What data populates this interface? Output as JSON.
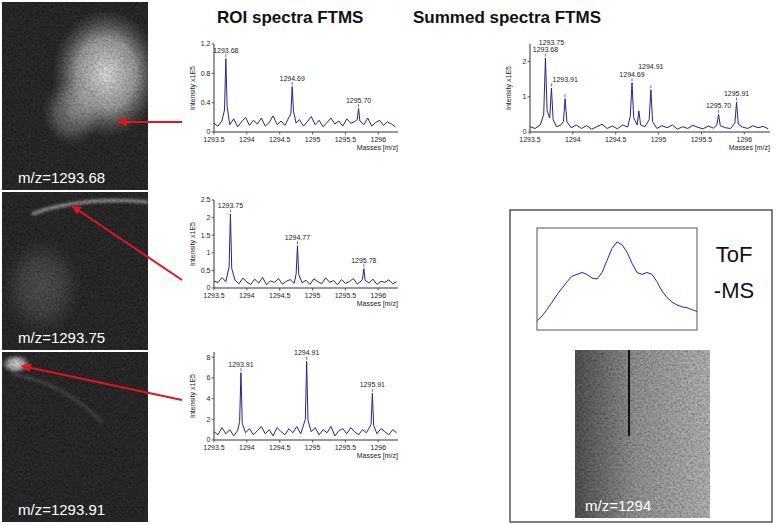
{
  "headings": {
    "roi": "ROI spectra FTMS",
    "summed": "Summed spectra FTMS"
  },
  "images": [
    {
      "label": "m/z=1293.68"
    },
    {
      "label": "m/z=1293.75"
    },
    {
      "label": "m/z=1293.91"
    },
    {
      "label": "m/z=1294"
    }
  ],
  "chart_data": [
    {
      "type": "line",
      "xlabel": "Masses [m/z]",
      "ylabel": "Intensity x1E5",
      "x": [
        1293.5,
        1293.56,
        1293.62,
        1293.66,
        1293.68,
        1293.7,
        1293.74,
        1293.8,
        1293.86,
        1293.92,
        1293.98,
        1294.04,
        1294.1,
        1294.16,
        1294.22,
        1294.28,
        1294.34,
        1294.4,
        1294.46,
        1294.52,
        1294.58,
        1294.64,
        1294.67,
        1294.69,
        1294.71,
        1294.75,
        1294.8,
        1294.86,
        1294.92,
        1294.98,
        1295.04,
        1295.1,
        1295.16,
        1295.22,
        1295.28,
        1295.34,
        1295.4,
        1295.46,
        1295.52,
        1295.58,
        1295.64,
        1295.68,
        1295.7,
        1295.72,
        1295.78,
        1295.84,
        1295.9,
        1295.96,
        1296.02,
        1296.08,
        1296.14,
        1296.2,
        1296.26
      ],
      "series": [
        {
          "color": "#2b2185",
          "values": [
            0.12,
            0.08,
            0.15,
            0.3,
            1.0,
            0.35,
            0.1,
            0.18,
            0.07,
            0.14,
            0.2,
            0.09,
            0.16,
            0.11,
            0.19,
            0.08,
            0.13,
            0.22,
            0.1,
            0.15,
            0.09,
            0.2,
            0.25,
            0.62,
            0.28,
            0.12,
            0.17,
            0.08,
            0.14,
            0.21,
            0.1,
            0.16,
            0.07,
            0.13,
            0.19,
            0.11,
            0.15,
            0.08,
            0.18,
            0.12,
            0.14,
            0.17,
            0.32,
            0.15,
            0.1,
            0.19,
            0.08,
            0.13,
            0.16,
            0.09,
            0.14,
            0.11,
            0.07
          ]
        }
      ],
      "xlim": [
        1293.5,
        1296.3
      ],
      "ylim": [
        0,
        1.2
      ],
      "xticks": [
        1293.5,
        1294,
        1294.5,
        1295,
        1295.5,
        1296
      ],
      "yticks": [
        0,
        0.4,
        0.8,
        1.2
      ],
      "annotations": [
        {
          "value": 1293.68,
          "label": "1293.68"
        },
        {
          "value": 1294.69,
          "label": "1294.69"
        },
        {
          "value": 1295.7,
          "label": "1295.70"
        }
      ]
    },
    {
      "type": "line",
      "xlabel": "Masses [m/z]",
      "ylabel": "Intensity x1E5",
      "x": [
        1293.5,
        1293.56,
        1293.62,
        1293.68,
        1293.73,
        1293.75,
        1293.77,
        1293.82,
        1293.88,
        1293.94,
        1294.0,
        1294.06,
        1294.12,
        1294.18,
        1294.24,
        1294.3,
        1294.36,
        1294.42,
        1294.48,
        1294.54,
        1294.6,
        1294.66,
        1294.72,
        1294.75,
        1294.77,
        1294.79,
        1294.84,
        1294.9,
        1294.96,
        1295.02,
        1295.08,
        1295.14,
        1295.2,
        1295.26,
        1295.32,
        1295.38,
        1295.44,
        1295.5,
        1295.56,
        1295.62,
        1295.68,
        1295.74,
        1295.76,
        1295.78,
        1295.8,
        1295.86,
        1295.92,
        1295.98,
        1296.04,
        1296.1,
        1296.16,
        1296.22,
        1296.28
      ],
      "series": [
        {
          "color": "#2b2185",
          "values": [
            0.2,
            0.15,
            0.3,
            0.18,
            0.6,
            2.1,
            0.55,
            0.22,
            0.12,
            0.28,
            0.17,
            0.1,
            0.25,
            0.14,
            0.3,
            0.09,
            0.2,
            0.16,
            0.27,
            0.11,
            0.19,
            0.24,
            0.13,
            0.4,
            1.2,
            0.38,
            0.15,
            0.22,
            0.1,
            0.26,
            0.18,
            0.12,
            0.29,
            0.16,
            0.21,
            0.09,
            0.24,
            0.13,
            0.18,
            0.27,
            0.11,
            0.2,
            0.25,
            0.55,
            0.22,
            0.14,
            0.25,
            0.1,
            0.19,
            0.16,
            0.23,
            0.12,
            0.18
          ]
        }
      ],
      "xlim": [
        1293.5,
        1296.3
      ],
      "ylim": [
        0,
        2.5
      ],
      "xticks": [
        1293.5,
        1294,
        1294.5,
        1295,
        1295.5,
        1296
      ],
      "yticks": [
        0,
        0.5,
        1,
        1.5,
        2,
        2.5
      ],
      "annotations": [
        {
          "value": 1293.75,
          "label": "1293.75"
        },
        {
          "value": 1294.77,
          "label": "1294.77"
        },
        {
          "value": 1295.78,
          "label": "1295.78"
        }
      ]
    },
    {
      "type": "line",
      "xlabel": "Masses [m/z]",
      "ylabel": "Intensity x1E5",
      "x": [
        1293.5,
        1293.56,
        1293.62,
        1293.68,
        1293.74,
        1293.8,
        1293.86,
        1293.89,
        1293.91,
        1293.93,
        1293.98,
        1294.04,
        1294.1,
        1294.16,
        1294.22,
        1294.28,
        1294.34,
        1294.4,
        1294.46,
        1294.52,
        1294.58,
        1294.64,
        1294.7,
        1294.76,
        1294.82,
        1294.89,
        1294.91,
        1294.93,
        1294.98,
        1295.04,
        1295.1,
        1295.16,
        1295.22,
        1295.28,
        1295.34,
        1295.4,
        1295.46,
        1295.52,
        1295.58,
        1295.64,
        1295.7,
        1295.76,
        1295.82,
        1295.89,
        1295.91,
        1295.93,
        1295.98,
        1296.04,
        1296.1,
        1296.16,
        1296.22,
        1296.28
      ],
      "series": [
        {
          "color": "#2b2185",
          "values": [
            0.8,
            0.5,
            1.2,
            0.6,
            1.0,
            0.4,
            0.9,
            1.8,
            6.5,
            1.6,
            0.7,
            1.1,
            0.5,
            0.9,
            1.3,
            0.6,
            1.0,
            0.4,
            1.2,
            0.8,
            0.5,
            1.1,
            0.7,
            1.3,
            0.6,
            2.0,
            7.6,
            1.9,
            0.8,
            1.2,
            0.5,
            1.0,
            0.7,
            1.3,
            0.4,
            0.9,
            1.1,
            0.6,
            1.2,
            0.8,
            0.5,
            1.0,
            0.7,
            1.5,
            4.5,
            1.4,
            0.6,
            1.1,
            0.8,
            0.5,
            1.0,
            0.7
          ]
        }
      ],
      "xlim": [
        1293.5,
        1296.3
      ],
      "ylim": [
        0,
        8.5
      ],
      "xticks": [
        1293.5,
        1294,
        1294.5,
        1295,
        1295.5,
        1296
      ],
      "yticks": [
        0,
        2,
        4,
        6,
        8
      ],
      "annotations": [
        {
          "value": 1293.91,
          "label": "1293.91"
        },
        {
          "value": 1294.91,
          "label": "1294.91"
        },
        {
          "value": 1295.91,
          "label": "1295.91"
        }
      ]
    },
    {
      "type": "line",
      "xlabel": "Masses [m/z]",
      "ylabel": "Intensity x1E5",
      "x": [
        1293.5,
        1293.56,
        1293.62,
        1293.66,
        1293.68,
        1293.7,
        1293.73,
        1293.75,
        1293.77,
        1293.81,
        1293.86,
        1293.89,
        1293.91,
        1293.93,
        1293.98,
        1294.04,
        1294.1,
        1294.16,
        1294.22,
        1294.28,
        1294.34,
        1294.4,
        1294.46,
        1294.52,
        1294.58,
        1294.64,
        1294.67,
        1294.69,
        1294.71,
        1294.75,
        1294.77,
        1294.79,
        1294.84,
        1294.89,
        1294.91,
        1294.93,
        1294.98,
        1295.04,
        1295.1,
        1295.16,
        1295.22,
        1295.28,
        1295.34,
        1295.4,
        1295.46,
        1295.52,
        1295.58,
        1295.64,
        1295.68,
        1295.7,
        1295.72,
        1295.78,
        1295.84,
        1295.89,
        1295.91,
        1295.93,
        1295.98,
        1296.04,
        1296.1,
        1296.16,
        1296.22,
        1296.28
      ],
      "series": [
        {
          "color": "#2b2185",
          "values": [
            0.15,
            0.1,
            0.2,
            0.5,
            2.1,
            0.6,
            0.4,
            1.25,
            0.35,
            0.15,
            0.2,
            0.3,
            0.95,
            0.3,
            0.12,
            0.2,
            0.1,
            0.18,
            0.08,
            0.15,
            0.22,
            0.1,
            0.17,
            0.09,
            0.2,
            0.14,
            0.45,
            1.4,
            0.4,
            0.2,
            0.6,
            0.2,
            0.15,
            0.35,
            1.2,
            0.3,
            0.1,
            0.18,
            0.12,
            0.2,
            0.08,
            0.15,
            0.1,
            0.19,
            0.13,
            0.09,
            0.17,
            0.11,
            0.2,
            0.5,
            0.18,
            0.12,
            0.1,
            0.25,
            0.85,
            0.22,
            0.14,
            0.1,
            0.18,
            0.12,
            0.16,
            0.09
          ]
        }
      ],
      "xlim": [
        1293.5,
        1296.3
      ],
      "ylim": [
        0,
        2.5
      ],
      "xticks": [
        1293.5,
        1294,
        1294.5,
        1295,
        1295.5,
        1296
      ],
      "yticks": [
        0,
        1,
        2
      ],
      "annotations": [
        {
          "value": 1293.68,
          "label": "1293.68"
        },
        {
          "value": 1293.75,
          "label": "1293.75"
        },
        {
          "value": 1293.91,
          "label": "1293.91"
        },
        {
          "value": 1294.69,
          "label": "1294.69"
        },
        {
          "value": 1294.91,
          "label": "1294.91"
        },
        {
          "value": 1295.7,
          "label": "1295.70"
        },
        {
          "value": 1295.91,
          "label": "1295.91"
        }
      ]
    },
    {
      "type": "line",
      "title": "ToF-MS",
      "x": [
        1290,
        1290.25,
        1290.5,
        1290.75,
        1291,
        1291.25,
        1291.5,
        1291.75,
        1292,
        1292.25,
        1292.5,
        1292.75,
        1293,
        1293.25,
        1293.5,
        1293.75,
        1294,
        1294.25,
        1294.5,
        1294.75,
        1295,
        1295.25,
        1295.5,
        1295.75,
        1296,
        1296.25,
        1296.5,
        1296.75,
        1297,
        1297.25,
        1297.5,
        1297.75,
        1298
      ],
      "series": [
        {
          "color": "#2020e0",
          "values": [
            0.1,
            0.15,
            0.22,
            0.3,
            0.38,
            0.45,
            0.52,
            0.58,
            0.6,
            0.62,
            0.6,
            0.56,
            0.55,
            0.62,
            0.75,
            0.88,
            0.95,
            0.92,
            0.84,
            0.72,
            0.62,
            0.6,
            0.62,
            0.6,
            0.52,
            0.42,
            0.35,
            0.3,
            0.27,
            0.25,
            0.24,
            0.22,
            0.2
          ]
        }
      ],
      "xlim": [
        1290,
        1298
      ],
      "ylim": [
        0,
        1.1
      ],
      "tick_labels": false
    }
  ]
}
